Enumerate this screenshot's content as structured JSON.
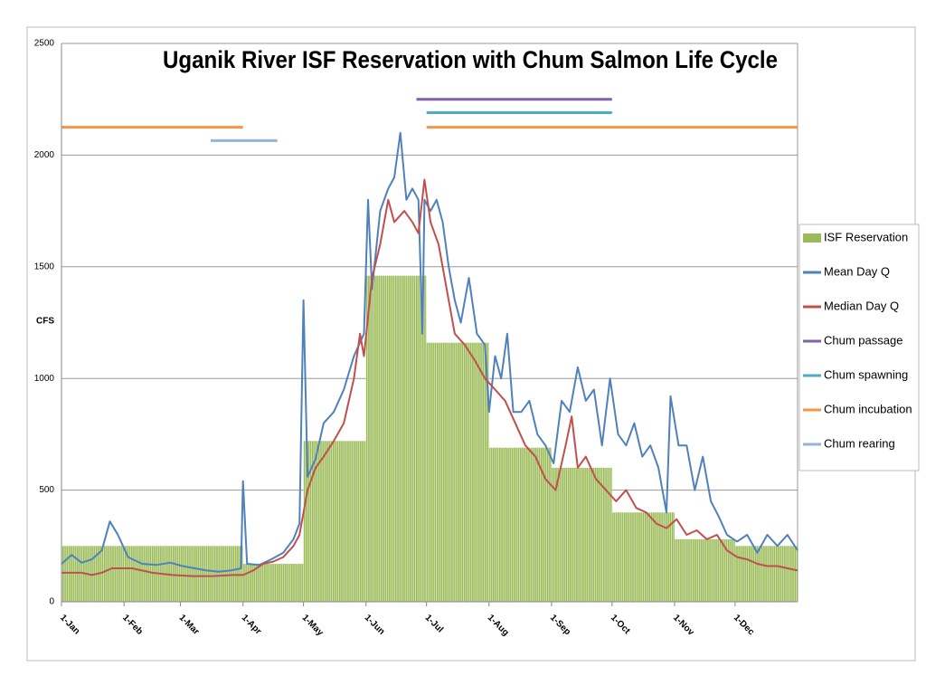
{
  "chart_data": {
    "type": "line",
    "title": "Uganik River ISF Reservation with Chum Salmon Life Cycle",
    "y_label": "CFS",
    "xlim": [
      0,
      365
    ],
    "xticks": [
      {
        "value": 0,
        "label": "1-Jan"
      },
      {
        "value": 31,
        "label": "1-Feb"
      },
      {
        "value": 59,
        "label": "1-Mar"
      },
      {
        "value": 90,
        "label": "1-Apr"
      },
      {
        "value": 120,
        "label": "1-May"
      },
      {
        "value": 151,
        "label": "1-Jun"
      },
      {
        "value": 181,
        "label": "1-Jul"
      },
      {
        "value": 212,
        "label": "1-Aug"
      },
      {
        "value": 243,
        "label": "1-Sep"
      },
      {
        "value": 273,
        "label": "1-Oct"
      },
      {
        "value": 304,
        "label": "1-Nov"
      },
      {
        "value": 334,
        "label": "1-Dec"
      }
    ],
    "ylim": [
      0,
      2500
    ],
    "yticks": [
      0,
      500,
      1000,
      1500,
      2000,
      2500
    ],
    "grid": true,
    "legend": "right",
    "series": [
      {
        "name": "ISF Reservation",
        "color": "#9bbb59",
        "bins": [
          0,
          31,
          59,
          90,
          120,
          151,
          181,
          212,
          243,
          273,
          304,
          334,
          365
        ],
        "values": [
          250,
          250,
          250,
          170,
          720,
          1460,
          1160,
          690,
          600,
          400,
          280,
          250
        ]
      },
      {
        "name": "Mean Day Q",
        "color": "#4f81bd",
        "x": [
          0,
          5,
          10,
          15,
          20,
          24,
          28,
          33,
          40,
          47,
          54,
          60,
          66,
          72,
          78,
          84,
          89,
          90,
          92,
          98,
          104,
          110,
          115,
          118,
          120,
          122,
          126,
          130,
          135,
          140,
          145,
          150,
          152,
          154,
          158,
          162,
          165,
          168,
          171,
          174,
          177,
          179,
          180,
          183,
          186,
          189,
          192,
          195,
          198,
          202,
          206,
          210,
          212,
          215,
          218,
          221,
          224,
          228,
          232,
          236,
          240,
          244,
          248,
          252,
          256,
          260,
          264,
          268,
          272,
          276,
          280,
          284,
          288,
          292,
          296,
          300,
          302,
          306,
          310,
          314,
          318,
          322,
          326,
          330,
          335,
          340,
          345,
          350,
          355,
          360,
          365
        ],
        "values": [
          170,
          210,
          175,
          190,
          230,
          360,
          300,
          200,
          170,
          165,
          175,
          160,
          150,
          140,
          135,
          140,
          150,
          540,
          170,
          165,
          190,
          220,
          280,
          350,
          1350,
          560,
          640,
          800,
          850,
          950,
          1100,
          1200,
          1800,
          1400,
          1750,
          1850,
          1900,
          2100,
          1800,
          1850,
          1800,
          1200,
          1800,
          1750,
          1800,
          1700,
          1500,
          1350,
          1250,
          1450,
          1200,
          1150,
          850,
          1100,
          1000,
          1200,
          850,
          850,
          900,
          750,
          700,
          620,
          900,
          850,
          1050,
          900,
          950,
          700,
          1000,
          750,
          700,
          800,
          650,
          700,
          600,
          400,
          920,
          700,
          700,
          500,
          650,
          450,
          380,
          300,
          270,
          300,
          220,
          300,
          250,
          300,
          230
        ]
      },
      {
        "name": "Median Day Q",
        "color": "#c0504d",
        "x": [
          0,
          10,
          15,
          20,
          25,
          35,
          45,
          55,
          65,
          75,
          85,
          90,
          95,
          100,
          105,
          110,
          115,
          118,
          122,
          126,
          130,
          135,
          140,
          145,
          148,
          150,
          154,
          158,
          162,
          165,
          170,
          174,
          177,
          180,
          183,
          187,
          190,
          195,
          200,
          205,
          210,
          215,
          220,
          225,
          230,
          235,
          240,
          245,
          250,
          253,
          256,
          260,
          265,
          270,
          275,
          280,
          285,
          290,
          295,
          300,
          305,
          310,
          315,
          320,
          325,
          330,
          335,
          340,
          345,
          350,
          355,
          360,
          365
        ],
        "values": [
          130,
          130,
          120,
          130,
          150,
          150,
          130,
          120,
          115,
          115,
          120,
          120,
          140,
          170,
          180,
          200,
          250,
          300,
          500,
          600,
          650,
          720,
          800,
          1000,
          1200,
          1100,
          1450,
          1600,
          1800,
          1700,
          1750,
          1700,
          1650,
          1890,
          1700,
          1600,
          1450,
          1200,
          1150,
          1080,
          1000,
          950,
          900,
          800,
          700,
          650,
          550,
          500,
          700,
          830,
          600,
          650,
          550,
          500,
          450,
          500,
          420,
          400,
          350,
          330,
          370,
          300,
          320,
          280,
          300,
          230,
          200,
          190,
          170,
          160,
          160,
          150,
          140
        ]
      },
      {
        "name": "Chum passage",
        "color": "#8064a2",
        "x": [
          176,
          273
        ],
        "values": [
          2250,
          2250
        ]
      },
      {
        "name": "Chum spawning",
        "color": "#4bacc6",
        "x": [
          181,
          273
        ],
        "values": [
          2190,
          2190
        ]
      },
      {
        "name": "Chum incubation",
        "color": "#f79646",
        "x": [
          0,
          90,
          91,
          181,
          365
        ],
        "values": [
          2125,
          2125,
          null,
          2125,
          2125
        ]
      },
      {
        "name": "Chum rearing",
        "color": "#95b3d7",
        "x": [
          74,
          107
        ],
        "values": [
          2065,
          2065
        ]
      }
    ]
  }
}
